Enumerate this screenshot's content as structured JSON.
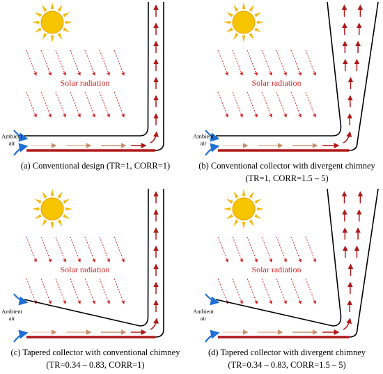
{
  "panels": [
    {
      "radiation_label": "Solar radiation",
      "inlet_label": [
        "Ambient",
        "air"
      ],
      "caption": [
        "(a) Conventional design (TR=1, CORR=1)"
      ]
    },
    {
      "radiation_label": "Solar radiation",
      "inlet_label": [
        "Ambient",
        "air"
      ],
      "caption": [
        "(b) Conventional collector with divergent chimney",
        "(TR=1, CORR=1.5 – 5)"
      ]
    },
    {
      "radiation_label": "Solar radiation",
      "inlet_label": [
        "Ambient",
        "air"
      ],
      "caption": [
        "(c) Tapered collector with conventional chimney",
        "(TR=0.34 – 0.83, CORR=1)"
      ]
    },
    {
      "radiation_label": "Solar radiation",
      "inlet_label": [
        "Ambient",
        "air"
      ],
      "caption": [
        "(d) Tapered collector with divergent chimney",
        "(TR=0.34 – 0.83, CORR=1.5 – 5)"
      ]
    }
  ]
}
